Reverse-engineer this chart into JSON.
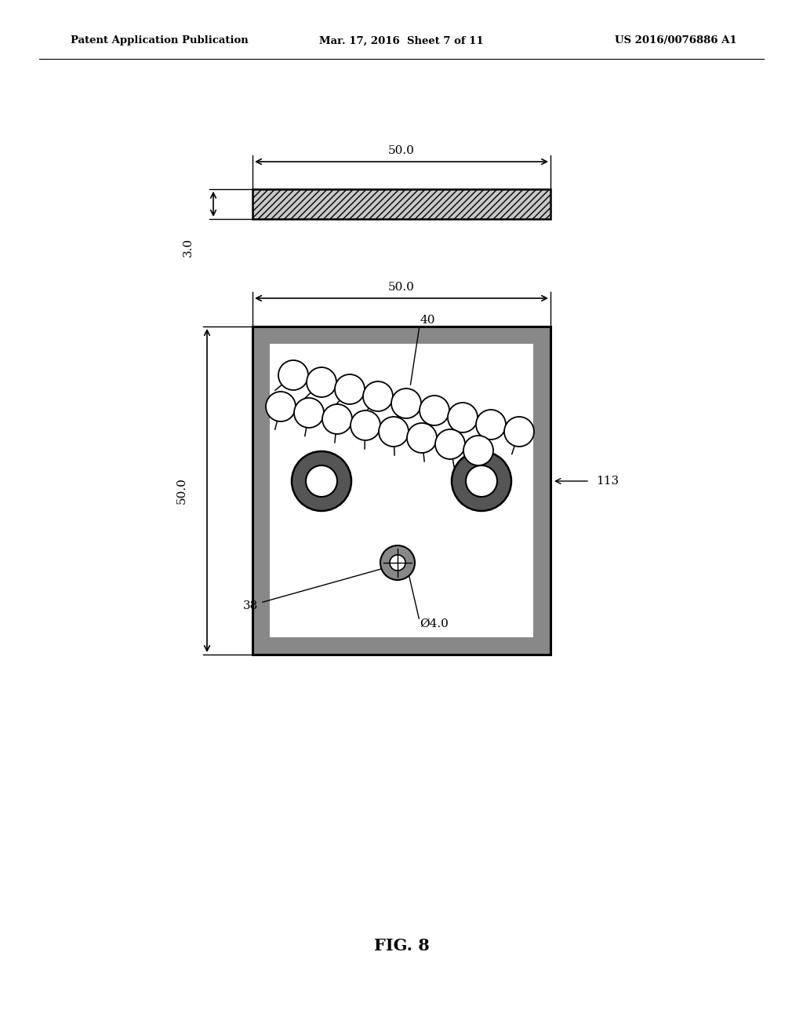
{
  "bg_color": "#ffffff",
  "header_left": "Patent Application Publication",
  "header_mid": "Mar. 17, 2016  Sheet 7 of 11",
  "header_right": "US 2016/0076886 A1",
  "fig_label": "FIG. 8",
  "label_50_top": "50.0",
  "label_3": "3.0",
  "label_40": "40",
  "label_113": "113",
  "label_38": "38",
  "label_dia": "Ø4.0",
  "label_50_sq_w": "50.0",
  "label_50_sq_h": "50.0"
}
